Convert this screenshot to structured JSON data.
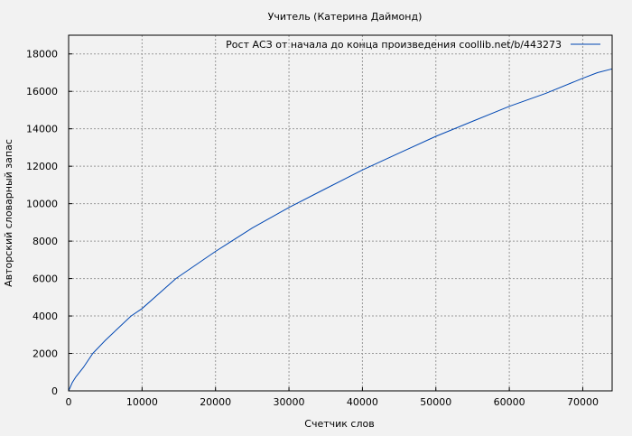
{
  "chart_data": {
    "type": "line",
    "title": "Учитель (Катерина Даймонд)",
    "xlabel": "Счетчик слов",
    "ylabel": "Авторский словарный запас",
    "xlim": [
      0,
      74000
    ],
    "ylim": [
      0,
      19000
    ],
    "xticks": [
      0,
      10000,
      20000,
      30000,
      40000,
      50000,
      60000,
      70000
    ],
    "yticks": [
      0,
      2000,
      4000,
      6000,
      8000,
      10000,
      12000,
      14000,
      16000,
      18000
    ],
    "grid": true,
    "legend_position": "top-right",
    "series": [
      {
        "name": "Рост АСЗ от начала до конца произведения  coollib.net/b/443273",
        "color": "#0047b3",
        "x": [
          0,
          500,
          1000,
          2000,
          3300,
          5000,
          8500,
          10000,
          14600,
          20000,
          25000,
          30000,
          35000,
          40000,
          45000,
          50000,
          55000,
          60000,
          65000,
          70000,
          72000,
          74000
        ],
        "y": [
          0,
          450,
          750,
          1250,
          2000,
          2700,
          4000,
          4400,
          6000,
          7450,
          8700,
          9800,
          10800,
          11800,
          12700,
          13600,
          14400,
          15200,
          15900,
          16700,
          17000,
          17200
        ]
      }
    ]
  }
}
